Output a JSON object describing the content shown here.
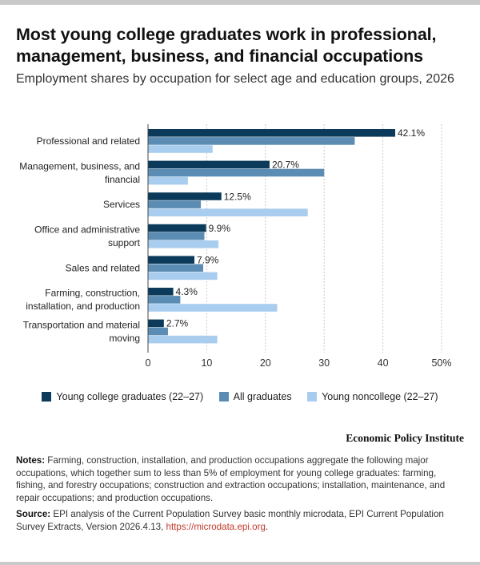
{
  "header": {
    "title": "Most young college graduates work in professional, management, business, and financial occupations",
    "subtitle": "Employment shares by occupation for select age and education groups, 2026"
  },
  "chart_data": {
    "type": "bar",
    "orientation": "horizontal",
    "categories": [
      [
        "Professional and related"
      ],
      [
        "Management, business, and",
        "financial"
      ],
      [
        "Services"
      ],
      [
        "Office and administrative",
        "support"
      ],
      [
        "Sales and related"
      ],
      [
        "Farming, construction,",
        "installation, and production"
      ],
      [
        "Transportation and material",
        "moving"
      ]
    ],
    "series": [
      {
        "name": "Young college graduates (22–27)",
        "color": "#0b3a5a",
        "values": [
          42.1,
          20.7,
          12.5,
          9.9,
          7.9,
          4.3,
          2.7
        ],
        "labels": [
          "42.1%",
          "20.7%",
          "12.5%",
          "9.9%",
          "7.9%",
          "4.3%",
          "2.7%"
        ]
      },
      {
        "name": "All graduates",
        "color": "#5b8db4",
        "values": [
          35.2,
          30.0,
          9.0,
          9.6,
          9.4,
          5.5,
          3.4
        ]
      },
      {
        "name": "Young noncollege (22–27)",
        "color": "#a9cdee",
        "values": [
          11.0,
          6.8,
          27.2,
          12.0,
          11.8,
          22.0,
          11.8
        ]
      }
    ],
    "x_ticks": [
      "0",
      "10",
      "20",
      "30",
      "40",
      "50%"
    ],
    "xlim": [
      0,
      50
    ],
    "grid": true,
    "legend_position": "bottom"
  },
  "legend": {
    "items": [
      {
        "label": "Young college graduates (22–27)",
        "color": "#0b3a5a"
      },
      {
        "label": "All graduates",
        "color": "#5b8db4"
      },
      {
        "label": "Young noncollege (22–27)",
        "color": "#a9cdee"
      }
    ]
  },
  "footer": {
    "organization": "Economic Policy Institute",
    "notes_label": "Notes:",
    "notes_text": " Farming, construction, installation, and production occupations aggregate the following major occupations, which together sum to less than 5% of employment for young college graduates: farming, fishing, and forestry occupations; construction and extraction occupations; installation, maintenance, and repair occupations; and production occupations.",
    "source_label": "Source:",
    "source_text": " EPI analysis of the Current Population Survey basic monthly microdata, EPI Current Population Survey Extracts, Version 2026.4.13, ",
    "source_link": "https://microdata.epi.org",
    "source_end": "."
  }
}
